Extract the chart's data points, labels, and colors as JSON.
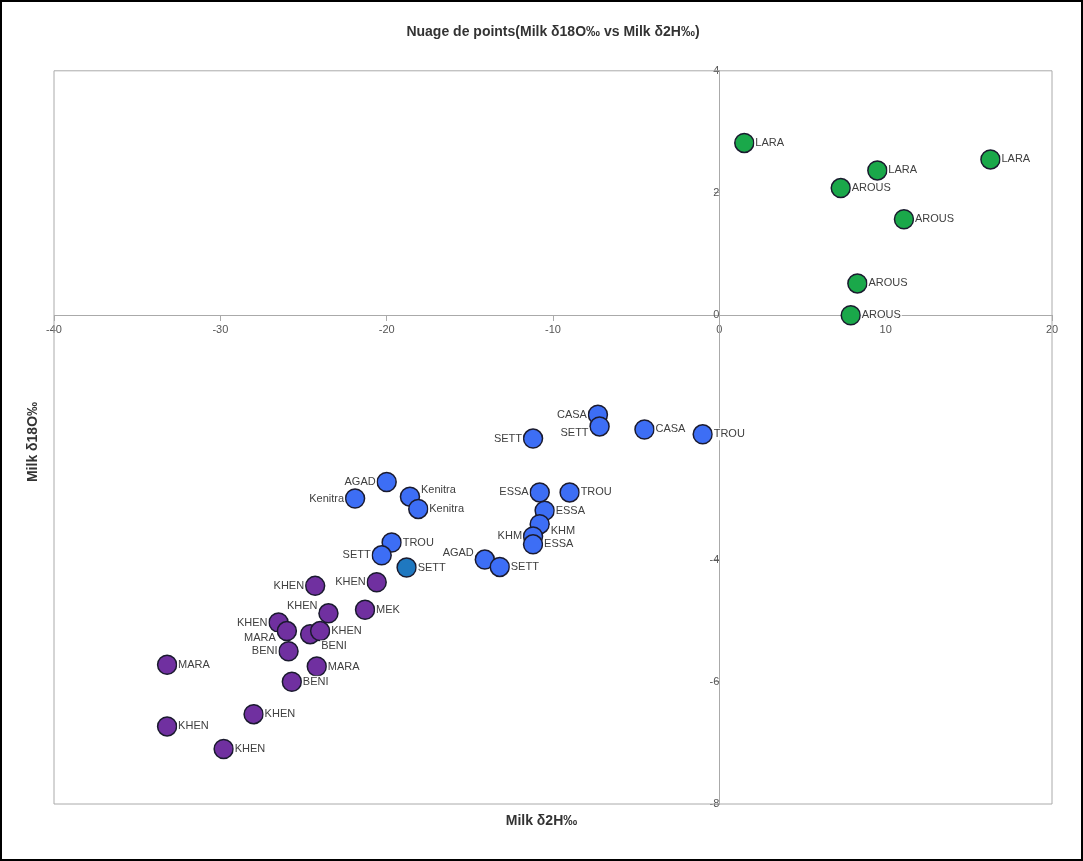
{
  "chart_data": {
    "type": "scatter",
    "title": "Nuage de points(Milk δ18O‰ vs Milk δ2H‰)",
    "xlabel": "Milk δ2H‰",
    "ylabel": "Milk δ18O‰",
    "xlim": [
      -40,
      20
    ],
    "xticks": [
      -40,
      -30,
      -20,
      -10,
      0,
      10,
      20
    ],
    "ylim": [
      -8,
      4
    ],
    "yticks": [
      -8,
      -6,
      -4,
      0,
      2,
      4
    ],
    "grid": false,
    "legend": false,
    "marker": "circle",
    "series": [
      {
        "color": "#1aa84a",
        "x": [
          1.5,
          9.5,
          16.3,
          7.3,
          11.1,
          8.3,
          7.9
        ],
        "values": [
          2.82,
          2.37,
          2.55,
          2.08,
          1.57,
          0.52,
          0.0
        ],
        "value_labels": [
          "LARA",
          "LARA",
          "LARA",
          "AROUS",
          "AROUS",
          "AROUS",
          "AROUS"
        ]
      },
      {
        "color": "#3d6ef5",
        "x": [
          -7.3,
          -7.2,
          -4.5,
          -1.0,
          -11.2,
          -10.8,
          -9.0,
          -10.5,
          -10.8,
          -11.2,
          -11.2,
          -14.1,
          -13.2,
          -20.0,
          -21.9,
          -18.6,
          -18.1,
          -19.7,
          -20.3
        ],
        "values": [
          -1.63,
          -1.82,
          -1.87,
          -1.95,
          -2.02,
          -2.9,
          -2.9,
          -3.2,
          -3.42,
          -3.62,
          -3.75,
          -4.0,
          -4.12,
          -2.73,
          -3.0,
          -2.97,
          -3.17,
          -3.72,
          -3.93
        ],
        "value_labels": [
          "CASA",
          "SETT",
          "CASA",
          "TROU",
          "SETT",
          "ESSA",
          "TROU",
          "ESSA",
          "KHM",
          "KHM",
          "ESSA",
          "AGAD",
          "SETT",
          "AGAD",
          "Kenitra",
          "Kenitra",
          "Kenitra",
          "TROU",
          "SETT"
        ]
      },
      {
        "color": "#1f78c0",
        "x": [
          -18.8
        ],
        "values": [
          -4.13
        ],
        "value_labels": [
          "SETT"
        ]
      },
      {
        "color": "#7030a0",
        "x": [
          -33.2,
          -33.2,
          -29.8,
          -28.0,
          -24.3,
          -20.6,
          -21.3,
          -23.5,
          -26.5,
          -26.0,
          -24.6,
          -24.0,
          -25.9,
          -24.2,
          -25.7
        ],
        "values": [
          -5.72,
          -6.73,
          -7.1,
          -6.53,
          -4.43,
          -4.37,
          -4.82,
          -4.88,
          -5.03,
          -5.17,
          -5.22,
          -5.17,
          -5.5,
          -5.75,
          -6.0
        ],
        "value_labels": [
          "MARA",
          "KHEN",
          "KHEN",
          "KHEN",
          "KHEN",
          "KHEN",
          "MEK",
          "KHEN",
          "KHEN",
          "MARA",
          "BENI",
          "KHEN",
          "BENI",
          "MARA",
          "BENI"
        ]
      }
    ]
  }
}
